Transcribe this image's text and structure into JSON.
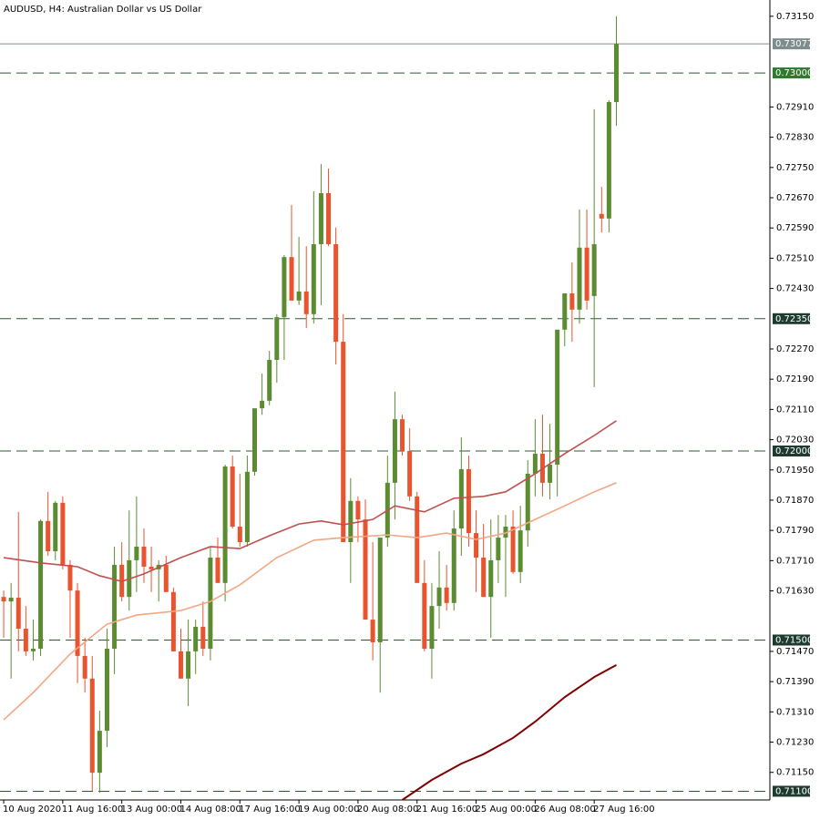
{
  "chart_data": {
    "type": "candlestick",
    "title": "AUDUSD, H4:  Australian Dollar vs US Dollar",
    "up_color": "#5b8c32",
    "down_color": "#e9542e",
    "xlim": [
      -0.5,
      103.8
    ],
    "ylim": [
      0.71077,
      0.73193
    ],
    "xticks": [
      {
        "value": 0,
        "label": "10 Aug 2020"
      },
      {
        "value": 8,
        "label": "11 Aug 16:00"
      },
      {
        "value": 16,
        "label": "13 Aug 00:00"
      },
      {
        "value": 24,
        "label": "14 Aug 08:00"
      },
      {
        "value": 32,
        "label": "17 Aug 16:00"
      },
      {
        "value": 40,
        "label": "19 Aug 00:00"
      },
      {
        "value": 48,
        "label": "20 Aug 08:00"
      },
      {
        "value": 56,
        "label": "21 Aug 16:00"
      },
      {
        "value": 64,
        "label": "25 Aug 00:00"
      },
      {
        "value": 72,
        "label": "26 Aug 08:00"
      },
      {
        "value": 80,
        "label": "27 Aug 16:00"
      }
    ],
    "yticks": [
      {
        "value": 0.7315,
        "label": "0.73150"
      },
      {
        "value": 0.7291,
        "label": "0.72910"
      },
      {
        "value": 0.7283,
        "label": "0.72830"
      },
      {
        "value": 0.7275,
        "label": "0.72750"
      },
      {
        "value": 0.7267,
        "label": "0.72670"
      },
      {
        "value": 0.7259,
        "label": "0.72590"
      },
      {
        "value": 0.7251,
        "label": "0.72510"
      },
      {
        "value": 0.7243,
        "label": "0.72430"
      },
      {
        "value": 0.7227,
        "label": "0.72270"
      },
      {
        "value": 0.7219,
        "label": "0.72190"
      },
      {
        "value": 0.7211,
        "label": "0.72110"
      },
      {
        "value": 0.7203,
        "label": "0.72030"
      },
      {
        "value": 0.7195,
        "label": "0.71950"
      },
      {
        "value": 0.7187,
        "label": "0.71870"
      },
      {
        "value": 0.7179,
        "label": "0.71790"
      },
      {
        "value": 0.7171,
        "label": "0.71710"
      },
      {
        "value": 0.7163,
        "label": "0.71630"
      },
      {
        "value": 0.7147,
        "label": "0.71470"
      },
      {
        "value": 0.7139,
        "label": "0.71390"
      },
      {
        "value": 0.7131,
        "label": "0.71310"
      },
      {
        "value": 0.7123,
        "label": "0.71230"
      },
      {
        "value": 0.7115,
        "label": "0.71150"
      }
    ],
    "levels": [
      {
        "value": 0.73,
        "label": "0.73000",
        "color": "#2f7a2f"
      },
      {
        "value": 0.7235,
        "label": "0.72350",
        "color": "#1f3b30"
      },
      {
        "value": 0.72,
        "label": "0.72000",
        "color": "#1f3b30"
      },
      {
        "value": 0.715,
        "label": "0.71500",
        "color": "#1f3b30"
      },
      {
        "value": 0.711,
        "label": "0.71100",
        "color": "#1f3b30"
      }
    ],
    "current_price": {
      "value": 0.73077,
      "label": "0.73077",
      "color": "#7f8c8d"
    },
    "candles": {
      "open": [
        0.71614,
        0.71602,
        0.71612,
        0.7153,
        0.7147,
        0.71477,
        0.71815,
        0.71735,
        0.71863,
        0.71699,
        0.71631,
        0.71458,
        0.71398,
        0.71149,
        0.7126,
        0.71477,
        0.71699,
        0.71614,
        0.71711,
        0.71747,
        0.71694,
        0.71687,
        0.71699,
        0.71627,
        0.7147,
        0.71398,
        0.7147,
        0.71535,
        0.71477,
        0.71718,
        0.71651,
        0.71959,
        0.718,
        0.71759,
        0.71945,
        0.72113,
        0.72133,
        0.72241,
        0.72354,
        0.72513,
        0.72398,
        0.72422,
        0.72362,
        0.72547,
        0.72682,
        0.72547,
        0.72289,
        0.71759,
        0.71868,
        0.71819,
        0.71554,
        0.71494,
        0.71771,
        0.71916,
        0.72084,
        0.72,
        0.7188,
        0.71651,
        0.71477,
        0.7159,
        0.71639,
        0.71598,
        0.71795,
        0.71952,
        0.71783,
        0.71718,
        0.71614,
        0.71711,
        0.71771,
        0.718,
        0.7168,
        0.7179,
        0.7194,
        0.71993,
        0.71916,
        0.71964,
        0.72321,
        0.72417,
        0.72374,
        0.72538,
        0.7241,
        0.72627,
        0.72615,
        0.72923
      ],
      "high": [
        0.71631,
        0.71651,
        0.71839,
        0.7159,
        0.71554,
        0.71819,
        0.71892,
        0.71868,
        0.7188,
        0.71711,
        0.71651,
        0.71506,
        0.71458,
        0.71313,
        0.7153,
        0.71747,
        0.71759,
        0.71843,
        0.7188,
        0.71795,
        0.71747,
        0.71711,
        0.71723,
        0.71639,
        0.7153,
        0.71554,
        0.71554,
        0.71602,
        0.71747,
        0.71771,
        0.71964,
        0.71988,
        0.7194,
        0.71988,
        0.72012,
        0.72205,
        0.72265,
        0.72362,
        0.72518,
        0.72651,
        0.72566,
        0.72542,
        0.72687,
        0.72759,
        0.72747,
        0.72591,
        0.72362,
        0.71928,
        0.7188,
        0.71872,
        0.71759,
        0.71651,
        0.71988,
        0.72157,
        0.72096,
        0.7206,
        0.71892,
        0.71711,
        0.71651,
        0.71735,
        0.71699,
        0.71843,
        0.72036,
        0.71988,
        0.71843,
        0.71807,
        0.71819,
        0.71831,
        0.71831,
        0.71843,
        0.71855,
        0.71976,
        0.72084,
        0.72096,
        0.72072,
        0.72084,
        0.72386,
        0.72499,
        0.72639,
        0.72639,
        0.72904,
        0.72699,
        0.72928,
        0.7315
      ],
      "low": [
        0.71506,
        0.71398,
        0.7147,
        0.71458,
        0.71446,
        0.71458,
        0.71723,
        0.71711,
        0.71687,
        0.71506,
        0.71386,
        0.71361,
        0.71101,
        0.71096,
        0.71217,
        0.7141,
        0.71602,
        0.71578,
        0.71627,
        0.71651,
        0.71627,
        0.71602,
        0.71627,
        0.7147,
        0.71398,
        0.71325,
        0.7141,
        0.71458,
        0.71446,
        0.71651,
        0.71602,
        0.71795,
        0.71747,
        0.71747,
        0.71935,
        0.72096,
        0.72121,
        0.72181,
        0.72241,
        0.72398,
        0.72386,
        0.72325,
        0.72337,
        0.72386,
        0.72542,
        0.72229,
        0.71759,
        0.71651,
        0.71759,
        0.71554,
        0.71446,
        0.71361,
        0.71747,
        0.71819,
        0.71988,
        0.71868,
        0.71651,
        0.7147,
        0.71398,
        0.7153,
        0.71578,
        0.71578,
        0.71723,
        0.71747,
        0.71627,
        0.71614,
        0.71506,
        0.71651,
        0.71614,
        0.71675,
        0.71651,
        0.71747,
        0.7188,
        0.7188,
        0.71872,
        0.7188,
        0.72277,
        0.72289,
        0.72337,
        0.72374,
        0.72169,
        0.72578,
        0.72578,
        0.7286
      ],
      "close": [
        0.71602,
        0.71612,
        0.7153,
        0.7147,
        0.71477,
        0.71815,
        0.71735,
        0.71863,
        0.71699,
        0.71631,
        0.71458,
        0.71398,
        0.71149,
        0.7126,
        0.71477,
        0.71699,
        0.71614,
        0.71711,
        0.71747,
        0.71694,
        0.71687,
        0.71699,
        0.71627,
        0.7147,
        0.71398,
        0.7147,
        0.71535,
        0.71477,
        0.71718,
        0.71651,
        0.71959,
        0.718,
        0.71759,
        0.71945,
        0.72113,
        0.72133,
        0.72241,
        0.72354,
        0.72513,
        0.72398,
        0.72422,
        0.72362,
        0.72547,
        0.72682,
        0.72547,
        0.72289,
        0.71759,
        0.71868,
        0.71819,
        0.71554,
        0.71494,
        0.71771,
        0.71916,
        0.72084,
        0.72,
        0.7188,
        0.71651,
        0.71477,
        0.7159,
        0.71639,
        0.71598,
        0.71795,
        0.71952,
        0.71783,
        0.71718,
        0.71614,
        0.71711,
        0.71771,
        0.718,
        0.7168,
        0.7179,
        0.7194,
        0.71993,
        0.71916,
        0.71964,
        0.72321,
        0.72417,
        0.72374,
        0.72538,
        0.72398,
        0.72547,
        0.72615,
        0.72923,
        0.73077
      ]
    },
    "series": [
      {
        "color": "#c0504d",
        "x": [
          0,
          5,
          10,
          13,
          16,
          19,
          24,
          28,
          32,
          36,
          40,
          43,
          46,
          50,
          53,
          57,
          61,
          65,
          68,
          72,
          76,
          80,
          83
        ],
        "values": [
          0.71718,
          0.71704,
          0.71694,
          0.7167,
          0.71655,
          0.71675,
          0.71718,
          0.71747,
          0.71742,
          0.71776,
          0.71807,
          0.71815,
          0.71805,
          0.71819,
          0.71855,
          0.71839,
          0.71875,
          0.7188,
          0.71892,
          0.7194,
          0.71993,
          0.72041,
          0.7208
        ]
      },
      {
        "color": "#f4a582",
        "x": [
          0,
          4,
          9,
          14,
          18,
          24,
          28,
          32,
          37,
          42,
          46,
          52,
          56,
          60,
          64,
          68,
          72,
          76,
          80,
          83
        ],
        "values": [
          0.71289,
          0.71361,
          0.71463,
          0.71542,
          0.71566,
          0.71578,
          0.71602,
          0.71646,
          0.71718,
          0.71764,
          0.71771,
          0.71778,
          0.71771,
          0.71783,
          0.71766,
          0.71783,
          0.71819,
          0.71855,
          0.71892,
          0.71916
        ]
      },
      {
        "color": "#7f0000",
        "x": [
          54,
          58,
          62,
          65,
          69,
          72,
          76,
          80,
          83
        ],
        "values": [
          0.71077,
          0.7113,
          0.71173,
          0.71198,
          0.71241,
          0.71284,
          0.71349,
          0.71402,
          0.71434
        ]
      }
    ]
  }
}
